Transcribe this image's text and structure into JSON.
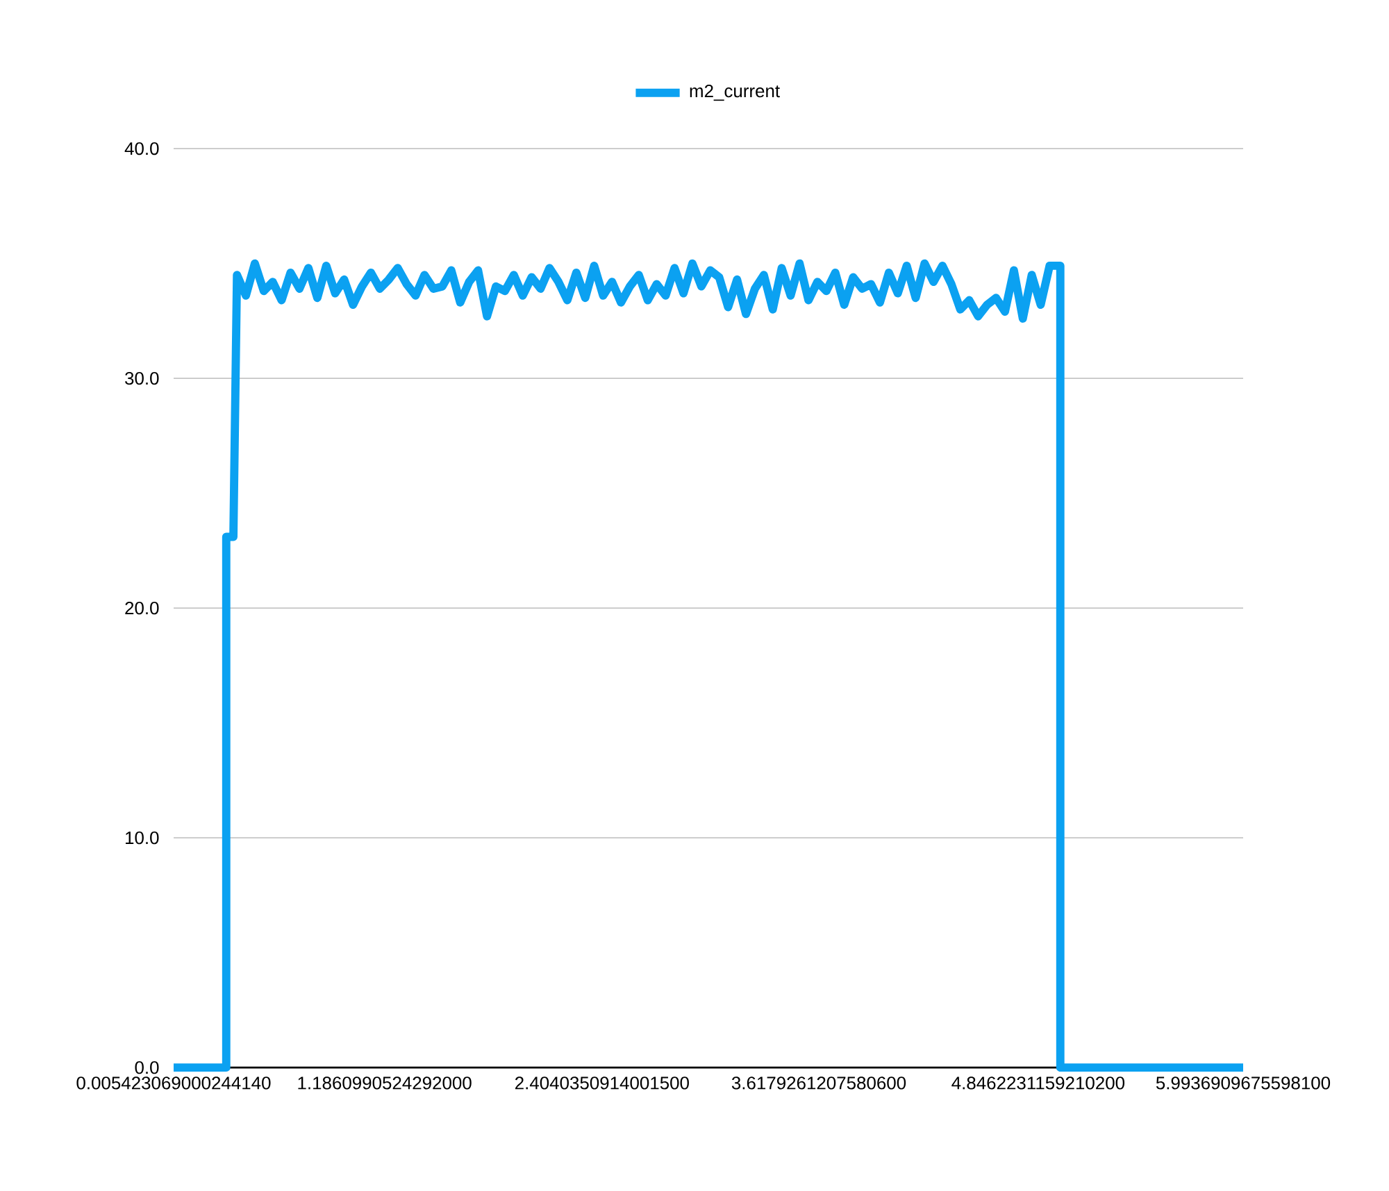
{
  "chart_data": {
    "type": "line",
    "x": [
      0.00542306900024414,
      0.3,
      0.3,
      0.34,
      0.36,
      0.41,
      0.46,
      0.51,
      0.56,
      0.61,
      0.66,
      0.71,
      0.76,
      0.81,
      0.86,
      0.91,
      0.96,
      1.01,
      1.06,
      1.11,
      1.16,
      1.21,
      1.26,
      1.31,
      1.36,
      1.41,
      1.46,
      1.51,
      1.56,
      1.61,
      1.66,
      1.71,
      1.76,
      1.81,
      1.86,
      1.91,
      1.96,
      2.01,
      2.06,
      2.11,
      2.16,
      2.21,
      2.26,
      2.31,
      2.36,
      2.41,
      2.46,
      2.51,
      2.56,
      2.61,
      2.66,
      2.71,
      2.76,
      2.81,
      2.86,
      2.91,
      2.96,
      3.01,
      3.06,
      3.11,
      3.16,
      3.21,
      3.26,
      3.31,
      3.36,
      3.41,
      3.46,
      3.51,
      3.56,
      3.61,
      3.66,
      3.71,
      3.76,
      3.81,
      3.86,
      3.91,
      3.96,
      4.01,
      4.06,
      4.11,
      4.16,
      4.21,
      4.26,
      4.31,
      4.36,
      4.41,
      4.46,
      4.51,
      4.56,
      4.61,
      4.66,
      4.71,
      4.76,
      4.81,
      4.86,
      4.91,
      4.97,
      4.97,
      5.99369096755981
    ],
    "series": [
      {
        "name": "m2_current",
        "color": "#0ba1f1",
        "values": [
          0,
          0,
          23.1,
          23.1,
          34.5,
          33.6,
          35.0,
          33.8,
          34.2,
          33.4,
          34.6,
          33.9,
          34.8,
          33.5,
          34.9,
          33.7,
          34.3,
          33.2,
          34.0,
          34.6,
          33.9,
          34.3,
          34.8,
          34.1,
          33.6,
          34.5,
          33.9,
          34.0,
          34.7,
          33.3,
          34.2,
          34.7,
          32.7,
          34.0,
          33.8,
          34.5,
          33.6,
          34.4,
          33.9,
          34.8,
          34.2,
          33.4,
          34.6,
          33.5,
          34.9,
          33.6,
          34.2,
          33.3,
          34.0,
          34.5,
          33.4,
          34.1,
          33.6,
          34.8,
          33.7,
          35.0,
          34.0,
          34.7,
          34.4,
          33.1,
          34.3,
          32.8,
          33.9,
          34.5,
          33.0,
          34.8,
          33.6,
          35.0,
          33.4,
          34.2,
          33.8,
          34.6,
          33.2,
          34.4,
          33.9,
          34.1,
          33.3,
          34.6,
          33.7,
          34.9,
          33.5,
          35.0,
          34.2,
          34.9,
          34.1,
          33.0,
          33.4,
          32.7,
          33.2,
          33.5,
          32.9,
          34.7,
          32.6,
          34.5,
          33.2,
          34.9,
          34.9,
          0,
          0
        ]
      }
    ],
    "xlim": [
      0.00542306900024414,
      5.99369096755981
    ],
    "xticks": [
      {
        "value": 0.00542306900024414,
        "label": "0.005423069000244140"
      },
      {
        "value": 1.1860990524292,
        "label": "1.1860990524292000"
      },
      {
        "value": 2.40403509140015,
        "label": "2.4040350914001500"
      },
      {
        "value": 3.61792612075806,
        "label": "3.6179261207580600"
      },
      {
        "value": 4.84622311592102,
        "label": "4.8462231159210200"
      },
      {
        "value": 5.99369096755981,
        "label": "5.9936909675598100"
      }
    ],
    "ylim": [
      0,
      40
    ],
    "yticks": [
      {
        "value": 0,
        "label": "0.0"
      },
      {
        "value": 10,
        "label": "10.0"
      },
      {
        "value": 20,
        "label": "20.0"
      },
      {
        "value": 30,
        "label": "30.0"
      },
      {
        "value": 40,
        "label": "40.0"
      }
    ],
    "grid": "y",
    "legend": "top"
  }
}
